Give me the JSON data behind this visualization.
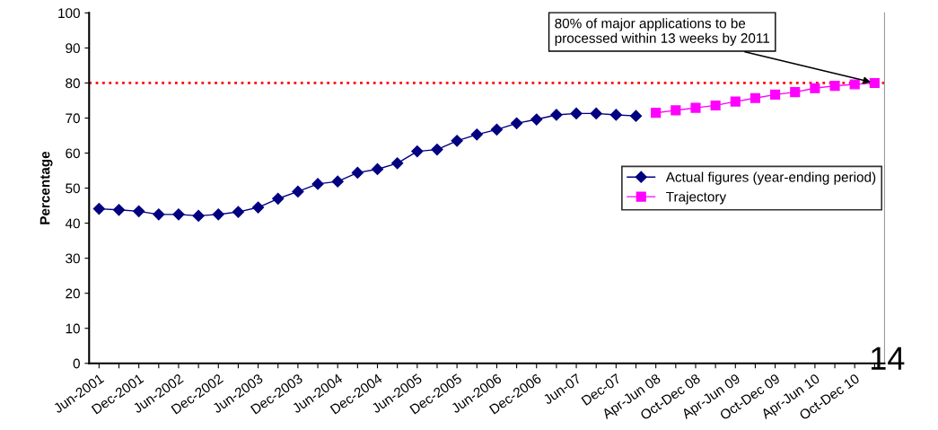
{
  "chart_data": {
    "type": "line",
    "ylabel": "Percentage",
    "categories": [
      "Jun-2001",
      null,
      "Dec-2001",
      null,
      "Jun-2002",
      null,
      "Dec-2002",
      null,
      "Jun-2003",
      null,
      "Dec-2003",
      null,
      "Jun-2004",
      null,
      "Dec-2004",
      null,
      "Jun-2005",
      null,
      "Dec-2005",
      null,
      "Jun-2006",
      null,
      "Dec-2006",
      null,
      "Jun-07",
      null,
      "Dec-07",
      null,
      "Apr-Jun 08",
      null,
      "Oct-Dec 08",
      null,
      "Apr-Jun 09",
      null,
      "Oct-Dec 09",
      null,
      "Apr-Jun 10",
      null,
      "Oct-Dec 10",
      null
    ],
    "series": [
      {
        "name": "Actual figures (year-ending period)",
        "color": "#000080",
        "marker": "diamond",
        "values": [
          44.1,
          43.8,
          43.4,
          42.5,
          42.5,
          42.1,
          42.5,
          43.2,
          44.5,
          47.0,
          49.0,
          51.2,
          51.9,
          54.4,
          55.4,
          57.1,
          60.5,
          61.0,
          63.5,
          65.3,
          66.7,
          68.5,
          69.6,
          70.9,
          71.3,
          71.3,
          70.9,
          70.6,
          null,
          null,
          null,
          null,
          null,
          null,
          null,
          null,
          null,
          null,
          null,
          null
        ]
      },
      {
        "name": "Trajectory",
        "color": "#ff00ff",
        "marker": "square",
        "values": [
          null,
          null,
          null,
          null,
          null,
          null,
          null,
          null,
          null,
          null,
          null,
          null,
          null,
          null,
          null,
          null,
          null,
          null,
          null,
          null,
          null,
          null,
          null,
          null,
          null,
          null,
          null,
          null,
          71.5,
          72.2,
          72.9,
          73.6,
          74.7,
          75.7,
          76.7,
          77.4,
          78.5,
          79.2,
          79.6,
          80.0
        ]
      }
    ],
    "ylim": [
      0,
      100
    ],
    "yticks": [
      0,
      10,
      20,
      30,
      40,
      50,
      60,
      70,
      80,
      90,
      100
    ],
    "ref_lines": [
      {
        "axis": "y",
        "value": 80,
        "color": "#ff0000",
        "line_style": "dotted"
      }
    ],
    "annotations": [
      {
        "text": "80% of major applications to be\nprocessed within 13 weeks by 2011",
        "y": 80
      },
      "14"
    ],
    "grid": false,
    "legend": "center right"
  }
}
